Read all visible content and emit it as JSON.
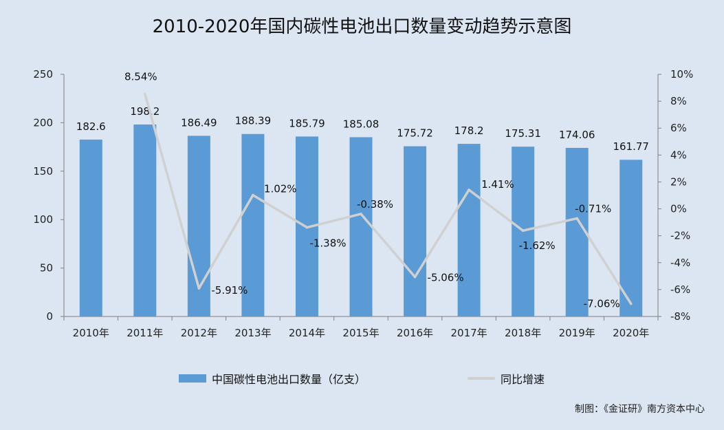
{
  "title": "2010-2020年国内碳性电池出口数量变动趋势示意图",
  "source_note": "制图：《金证研》南方资本中心",
  "colors": {
    "background": "#dce6f2",
    "bar": "#5b9bd5",
    "line": "#d0d0d0",
    "axis": "#7f7f7f"
  },
  "chart_data": {
    "type": "bar",
    "categories": [
      "2010年",
      "2011年",
      "2012年",
      "2013年",
      "2014年",
      "2015年",
      "2016年",
      "2017年",
      "2018年",
      "2019年",
      "2020年"
    ],
    "series": [
      {
        "name": "中国碳性电池出口数量（亿支）",
        "type": "bar",
        "axis": "left",
        "values": [
          182.6,
          198.2,
          186.49,
          188.39,
          185.79,
          185.08,
          175.72,
          178.2,
          175.31,
          174.06,
          161.77
        ],
        "labels": [
          "182.6",
          "198.2",
          "186.49",
          "188.39",
          "185.79",
          "185.08",
          "175.72",
          "178.2",
          "175.31",
          "174.06",
          "161.77"
        ]
      },
      {
        "name": "同比增速",
        "type": "line",
        "axis": "right",
        "values": [
          null,
          8.54,
          -5.91,
          1.02,
          -1.38,
          -0.38,
          -5.06,
          1.41,
          -1.62,
          -0.71,
          -7.06
        ],
        "labels": [
          "",
          "8.54%",
          "-5.91%",
          "1.02%",
          "-1.38%",
          "-0.38%",
          "-5.06%",
          "1.41%",
          "-1.62%",
          "-0.71%",
          "-7.06%"
        ]
      }
    ],
    "left_axis": {
      "ylim": [
        0,
        250
      ],
      "ticks": [
        0,
        50,
        100,
        150,
        200,
        250
      ],
      "tick_labels": [
        "0",
        "50",
        "100",
        "150",
        "200",
        "250"
      ]
    },
    "right_axis": {
      "ylim": [
        -8,
        10
      ],
      "ticks": [
        -8,
        -6,
        -4,
        -2,
        0,
        2,
        4,
        6,
        8,
        10
      ],
      "tick_labels": [
        "-8%",
        "-6%",
        "-4%",
        "-2%",
        "0%",
        "2%",
        "4%",
        "6%",
        "8%",
        "10%"
      ]
    },
    "grid": false,
    "legend_position": "bottom"
  }
}
